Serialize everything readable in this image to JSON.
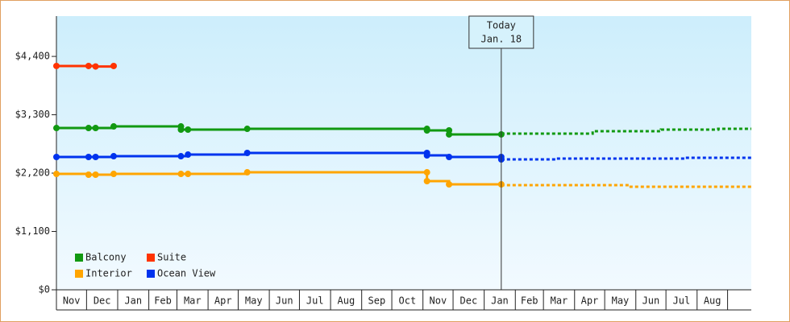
{
  "chart_data": {
    "type": "line",
    "step": true,
    "xlim": [
      0,
      692
    ],
    "ylim": [
      0,
      5160
    ],
    "yticks": [
      {
        "value": 0,
        "label": "$0"
      },
      {
        "value": 1100,
        "label": "$1,100"
      },
      {
        "value": 2200,
        "label": "$2,200"
      },
      {
        "value": 3300,
        "label": "$3,300"
      },
      {
        "value": 4400,
        "label": "$4,400"
      }
    ],
    "xticks": [
      {
        "value": 0,
        "label": "Nov"
      },
      {
        "value": 30,
        "label": "Dec"
      },
      {
        "value": 61,
        "label": "Jan"
      },
      {
        "value": 92,
        "label": "Feb"
      },
      {
        "value": 120,
        "label": "Mar"
      },
      {
        "value": 151,
        "label": "Apr"
      },
      {
        "value": 181,
        "label": "May"
      },
      {
        "value": 212,
        "label": "Jun"
      },
      {
        "value": 242,
        "label": "Jul"
      },
      {
        "value": 273,
        "label": "Aug"
      },
      {
        "value": 304,
        "label": "Sep"
      },
      {
        "value": 334,
        "label": "Oct"
      },
      {
        "value": 365,
        "label": "Nov"
      },
      {
        "value": 395,
        "label": "Dec"
      },
      {
        "value": 426,
        "label": "Jan"
      },
      {
        "value": 457,
        "label": "Feb"
      },
      {
        "value": 485,
        "label": "Mar"
      },
      {
        "value": 516,
        "label": "Apr"
      },
      {
        "value": 546,
        "label": "May"
      },
      {
        "value": 577,
        "label": "Jun"
      },
      {
        "value": 607,
        "label": "Jul"
      },
      {
        "value": 638,
        "label": "Aug"
      }
    ],
    "annotation": {
      "x": 443,
      "lines": [
        "Today",
        "Jan. 18"
      ]
    },
    "series": [
      {
        "name": "Balcony",
        "color": "#119911",
        "x": [
          0,
          32,
          39,
          57,
          124,
          124,
          131,
          190,
          369,
          369,
          391,
          391,
          443
        ],
        "values": [
          3050,
          3050,
          3050,
          3080,
          3080,
          3020,
          3020,
          3035,
          3035,
          3005,
          3005,
          2930,
          2930
        ],
        "forecast": {
          "x": [
            443,
            534,
            602,
            659,
            692
          ],
          "values": [
            2945,
            2990,
            3020,
            3035,
            3035
          ]
        }
      },
      {
        "name": "Suite",
        "color": "#ff3300",
        "x": [
          0,
          32,
          39,
          57
        ],
        "values": [
          4220,
          4220,
          4210,
          4220
        ]
      },
      {
        "name": "Interior",
        "color": "#ffa500",
        "x": [
          0,
          32,
          39,
          57,
          124,
          131,
          190,
          369,
          369,
          391,
          443
        ],
        "values": [
          2185,
          2170,
          2170,
          2185,
          2185,
          2185,
          2215,
          2215,
          2049,
          1988,
          1988
        ],
        "forecast": {
          "x": [
            443,
            570,
            692
          ],
          "values": [
            1973,
            1942,
            1942
          ]
        }
      },
      {
        "name": "Ocean View",
        "color": "#0033ee",
        "x": [
          0,
          32,
          39,
          57,
          124,
          131,
          190,
          369,
          369,
          391,
          443,
          443
        ],
        "values": [
          2504,
          2504,
          2504,
          2519,
          2519,
          2549,
          2580,
          2580,
          2534,
          2504,
          2504,
          2458
        ],
        "forecast": {
          "x": [
            443,
            498,
            626,
            692
          ],
          "values": [
            2458,
            2473,
            2489,
            2489
          ]
        }
      }
    ]
  }
}
